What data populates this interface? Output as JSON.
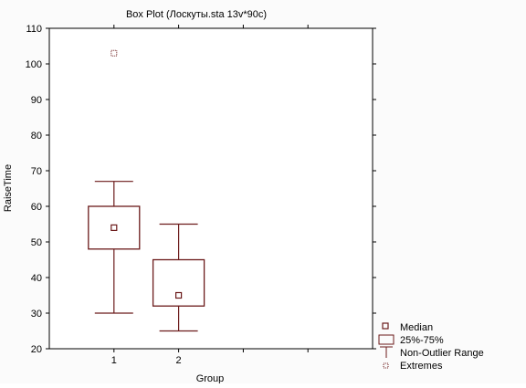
{
  "chart_data": {
    "type": "boxplot",
    "title": "Box Plot (Лоскуты.sta 13v*90c)",
    "xlabel": "Group",
    "ylabel": "RaiseTime",
    "categories": [
      "1",
      "2"
    ],
    "x_range": [
      0,
      5
    ],
    "ylim": [
      20,
      110
    ],
    "yticks": [
      20,
      30,
      40,
      50,
      60,
      70,
      80,
      90,
      100,
      110
    ],
    "grid": false,
    "legend_position": "bottom-right",
    "series": [
      {
        "category": "1",
        "median": 54,
        "q1": 48,
        "q3": 60,
        "whisker_low": 30,
        "whisker_high": 67,
        "extremes": [
          103
        ]
      },
      {
        "category": "2",
        "median": 35,
        "q1": 32,
        "q3": 45,
        "whisker_low": 25,
        "whisker_high": 55,
        "extremes": []
      }
    ],
    "legend": {
      "median": "Median",
      "box": "25%-75%",
      "whisker": "Non-Outlier Range",
      "extremes": "Extremes"
    },
    "colors": {
      "box": "#6b1a1a",
      "frame": "#000000",
      "background": "#fbfbfb"
    }
  }
}
